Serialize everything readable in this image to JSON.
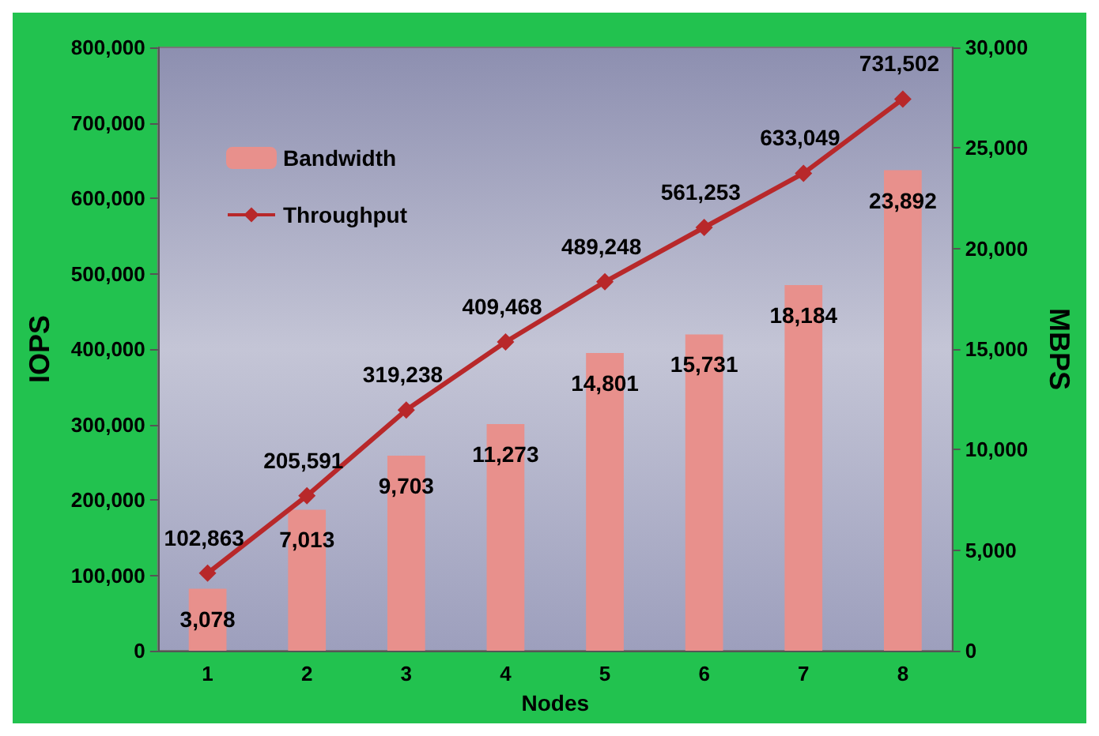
{
  "chart_data": {
    "type": "bar",
    "xlabel": "Nodes",
    "ylabel": "IOPS",
    "y2label": "MBPS",
    "categories": [
      "1",
      "2",
      "3",
      "4",
      "5",
      "6",
      "7",
      "8"
    ],
    "series": [
      {
        "name": "Bandwidth",
        "axis": "y2",
        "color": "#e8908c",
        "values": [
          3078,
          7013,
          9703,
          11273,
          14801,
          15731,
          18184,
          23892
        ],
        "value_labels": [
          "3,078",
          "7,013",
          "9,703",
          "11,273",
          "14,801",
          "15,731",
          "18,184",
          "23,892"
        ]
      },
      {
        "name": "Throughput",
        "type": "line",
        "axis": "y",
        "color": "#b8282a",
        "marker": "diamond",
        "values": [
          102863,
          205591,
          319238,
          409468,
          489248,
          561253,
          633049,
          731502
        ],
        "value_labels": [
          "102,863",
          "205,591",
          "319,238",
          "409,468",
          "489,248",
          "561,253",
          "633,049",
          "731,502"
        ]
      }
    ],
    "ylim": [
      0,
      800000
    ],
    "yticks": [
      {
        "value": 0,
        "label": "0"
      },
      {
        "value": 100000,
        "label": "100,000"
      },
      {
        "value": 200000,
        "label": "200,000"
      },
      {
        "value": 300000,
        "label": "300,000"
      },
      {
        "value": 400000,
        "label": "400,000"
      },
      {
        "value": 500000,
        "label": "500,000"
      },
      {
        "value": 600000,
        "label": "600,000"
      },
      {
        "value": 700000,
        "label": "700,000"
      },
      {
        "value": 800000,
        "label": "800,000"
      }
    ],
    "y2lim": [
      0,
      30000
    ],
    "y2ticks": [
      {
        "value": 0,
        "label": "0"
      },
      {
        "value": 5000,
        "label": "5,000"
      },
      {
        "value": 10000,
        "label": "10,000"
      },
      {
        "value": 15000,
        "label": "15,000"
      },
      {
        "value": 20000,
        "label": "20,000"
      },
      {
        "value": 25000,
        "label": "25,000"
      },
      {
        "value": 30000,
        "label": "30,000"
      }
    ],
    "legend": "top left",
    "grid": false
  }
}
